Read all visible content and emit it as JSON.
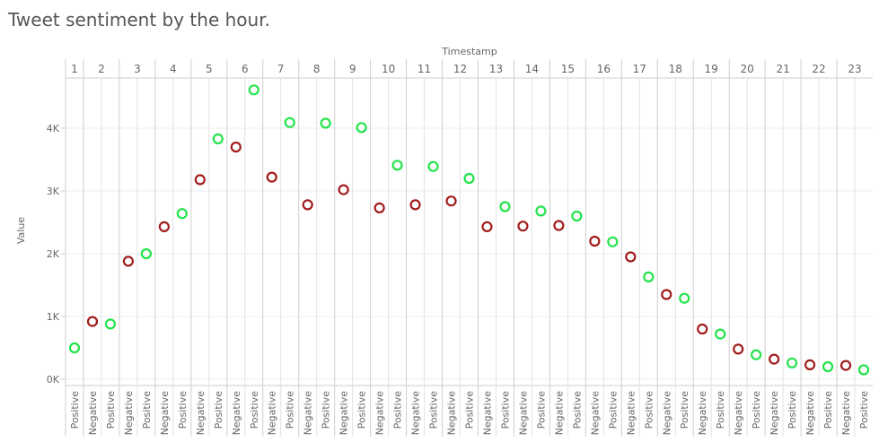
{
  "chart_data": {
    "type": "scatter",
    "title": "Tweet sentiment by the hour.",
    "column_header": "Timestamp",
    "ylabel": "Value",
    "ylim": [
      -100,
      4800
    ],
    "y_ticks": [
      {
        "value": 0,
        "label": "0K"
      },
      {
        "value": 1000,
        "label": "1K"
      },
      {
        "value": 2000,
        "label": "2K"
      },
      {
        "value": 3000,
        "label": "3K"
      },
      {
        "value": 4000,
        "label": "4K"
      }
    ],
    "grid": true,
    "colors": {
      "Negative": "#a11b1b",
      "Positive": "#22e34a"
    },
    "panels": [
      {
        "hour": "1",
        "points": [
          {
            "label": "Positive",
            "value": 500
          }
        ]
      },
      {
        "hour": "2",
        "points": [
          {
            "label": "Negative",
            "value": 920
          },
          {
            "label": "Positive",
            "value": 880
          }
        ]
      },
      {
        "hour": "3",
        "points": [
          {
            "label": "Negative",
            "value": 1880
          },
          {
            "label": "Positive",
            "value": 2000
          }
        ]
      },
      {
        "hour": "4",
        "points": [
          {
            "label": "Negative",
            "value": 2430
          },
          {
            "label": "Positive",
            "value": 2640
          }
        ]
      },
      {
        "hour": "5",
        "points": [
          {
            "label": "Negative",
            "value": 3180
          },
          {
            "label": "Positive",
            "value": 3830
          }
        ]
      },
      {
        "hour": "6",
        "points": [
          {
            "label": "Negative",
            "value": 3700
          },
          {
            "label": "Positive",
            "value": 4610
          }
        ]
      },
      {
        "hour": "7",
        "points": [
          {
            "label": "Negative",
            "value": 3220
          },
          {
            "label": "Positive",
            "value": 4090
          }
        ]
      },
      {
        "hour": "8",
        "points": [
          {
            "label": "Negative",
            "value": 2780
          },
          {
            "label": "Positive",
            "value": 4080
          }
        ]
      },
      {
        "hour": "9",
        "points": [
          {
            "label": "Negative",
            "value": 3020
          },
          {
            "label": "Positive",
            "value": 4010
          }
        ]
      },
      {
        "hour": "10",
        "points": [
          {
            "label": "Negative",
            "value": 2730
          },
          {
            "label": "Positive",
            "value": 3410
          }
        ]
      },
      {
        "hour": "11",
        "points": [
          {
            "label": "Negative",
            "value": 2780
          },
          {
            "label": "Positive",
            "value": 3390
          }
        ]
      },
      {
        "hour": "12",
        "points": [
          {
            "label": "Negative",
            "value": 2840
          },
          {
            "label": "Positive",
            "value": 3200
          }
        ]
      },
      {
        "hour": "13",
        "points": [
          {
            "label": "Negative",
            "value": 2430
          },
          {
            "label": "Positive",
            "value": 2750
          }
        ]
      },
      {
        "hour": "14",
        "points": [
          {
            "label": "Negative",
            "value": 2440
          },
          {
            "label": "Positive",
            "value": 2680
          }
        ]
      },
      {
        "hour": "15",
        "points": [
          {
            "label": "Negative",
            "value": 2450
          },
          {
            "label": "Positive",
            "value": 2600
          }
        ]
      },
      {
        "hour": "16",
        "points": [
          {
            "label": "Negative",
            "value": 2200
          },
          {
            "label": "Positive",
            "value": 2190
          }
        ]
      },
      {
        "hour": "17",
        "points": [
          {
            "label": "Negative",
            "value": 1950
          },
          {
            "label": "Positive",
            "value": 1630
          }
        ]
      },
      {
        "hour": "18",
        "points": [
          {
            "label": "Negative",
            "value": 1350
          },
          {
            "label": "Positive",
            "value": 1290
          }
        ]
      },
      {
        "hour": "19",
        "points": [
          {
            "label": "Negative",
            "value": 800
          },
          {
            "label": "Positive",
            "value": 720
          }
        ]
      },
      {
        "hour": "20",
        "points": [
          {
            "label": "Negative",
            "value": 480
          },
          {
            "label": "Positive",
            "value": 390
          }
        ]
      },
      {
        "hour": "21",
        "points": [
          {
            "label": "Negative",
            "value": 320
          },
          {
            "label": "Positive",
            "value": 260
          }
        ]
      },
      {
        "hour": "22",
        "points": [
          {
            "label": "Negative",
            "value": 230
          },
          {
            "label": "Positive",
            "value": 200
          }
        ]
      },
      {
        "hour": "23",
        "points": [
          {
            "label": "Negative",
            "value": 220
          },
          {
            "label": "Positive",
            "value": 150
          }
        ]
      }
    ]
  }
}
